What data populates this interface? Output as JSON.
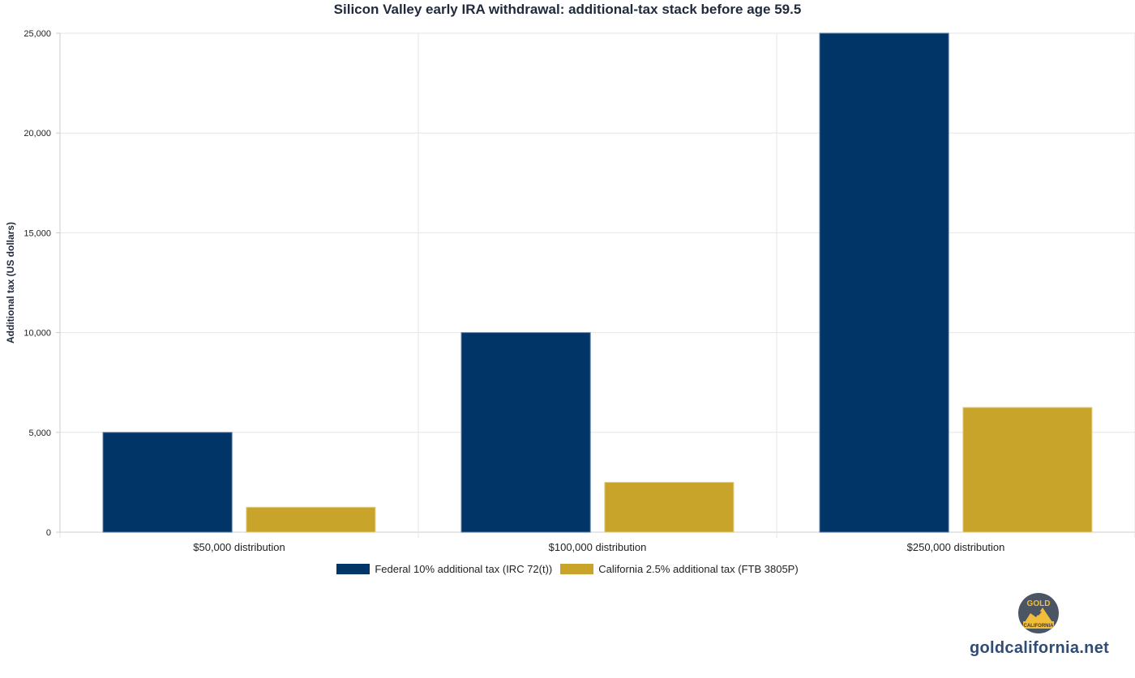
{
  "chart_data": {
    "type": "bar",
    "title": "Silicon Valley early IRA withdrawal: additional-tax stack before age 59.5",
    "xlabel": "",
    "ylabel": "Additional tax (US dollars)",
    "categories": [
      "$50,000 distribution",
      "$100,000 distribution",
      "$250,000 distribution"
    ],
    "series": [
      {
        "name": "Federal 10% additional tax (IRC 72(t))",
        "values": [
          5000,
          10000,
          25000
        ],
        "color": "#023567"
      },
      {
        "name": "California 2.5% additional tax (FTB 3805P)",
        "values": [
          1250,
          2500,
          6250
        ],
        "color": "#c9a42b"
      }
    ],
    "ylim": [
      0,
      25000
    ],
    "yticks": [
      "0",
      "5,000",
      "10,000",
      "15,000",
      "20,000",
      "25,000"
    ],
    "grid": true,
    "legend_position": "bottom-center"
  },
  "brand": {
    "logo_top": "GOLD",
    "logo_bottom": "CALIFORNIA",
    "site": "goldcalifornia.net"
  }
}
